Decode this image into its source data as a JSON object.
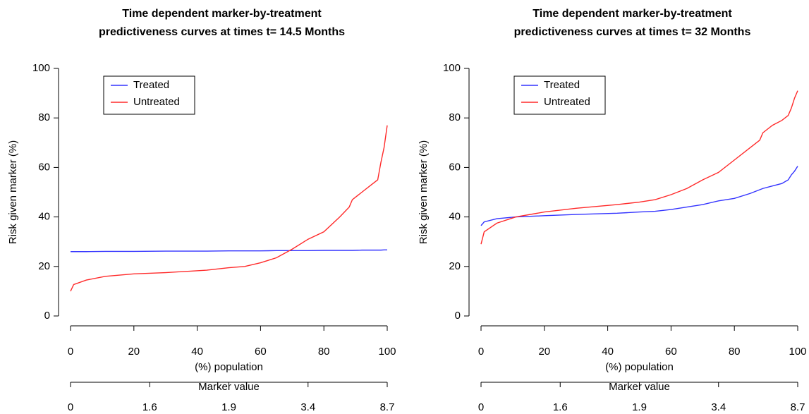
{
  "chart_data": [
    {
      "type": "line",
      "title": [
        "Time dependent marker-by-treatment",
        "predictiveness curves at times t= 14.5 Months"
      ],
      "xlabel": "(%) population",
      "ylabel": "Risk given marker (%)",
      "x": [
        0,
        1,
        5,
        11,
        20,
        30,
        43,
        50,
        55,
        60,
        65,
        70,
        75,
        80,
        85,
        88,
        89,
        92,
        95,
        97,
        98,
        99,
        100
      ],
      "series": [
        {
          "name": "Treated",
          "color": "#3333ff",
          "values": [
            26,
            26,
            26,
            26.1,
            26.1,
            26.2,
            26.2,
            26.3,
            26.3,
            26.3,
            26.4,
            26.4,
            26.4,
            26.5,
            26.5,
            26.5,
            26.5,
            26.6,
            26.6,
            26.6,
            26.6,
            26.7,
            26.7
          ]
        },
        {
          "name": "Untreated",
          "color": "#ff2a2a",
          "values": [
            10,
            12.7,
            14.5,
            16,
            17,
            17.5,
            18.5,
            19.5,
            20,
            21.5,
            23.5,
            27,
            31,
            34,
            40,
            44,
            47,
            50,
            53,
            55,
            62,
            68,
            77
          ]
        }
      ],
      "xlim": [
        0,
        100
      ],
      "xticks": [
        0,
        20,
        40,
        60,
        80,
        100
      ],
      "ylim": [
        0,
        100
      ],
      "yticks": [
        0,
        20,
        40,
        60,
        80,
        100
      ],
      "x2label": "Marker value",
      "x2categories": [
        0,
        1.6,
        1.9,
        3.4,
        8.7
      ],
      "legend": "top-left"
    },
    {
      "type": "line",
      "title": [
        "Time dependent marker-by-treatment",
        "predictiveness curves at times t= 32 Months"
      ],
      "xlabel": "(%) population",
      "ylabel": "Risk given marker (%)",
      "x": [
        0,
        1,
        5,
        11,
        20,
        30,
        43,
        50,
        55,
        60,
        65,
        70,
        75,
        80,
        85,
        88,
        89,
        92,
        95,
        97,
        98,
        99,
        100
      ],
      "series": [
        {
          "name": "Treated",
          "color": "#3333ff",
          "values": [
            36.5,
            38,
            39.3,
            40,
            40.5,
            41,
            41.5,
            42,
            42.3,
            43,
            44,
            45,
            46.5,
            47.5,
            49.5,
            51,
            51.5,
            52.5,
            53.5,
            55,
            57,
            58.5,
            60.5
          ]
        },
        {
          "name": "Untreated",
          "color": "#ff2a2a",
          "values": [
            29,
            34,
            37.5,
            40,
            42,
            43.5,
            45,
            46,
            47,
            49,
            51.5,
            55,
            58,
            63,
            68,
            71,
            74,
            77,
            79,
            81,
            84,
            88,
            91
          ]
        }
      ],
      "xlim": [
        0,
        100
      ],
      "xticks": [
        0,
        20,
        40,
        60,
        80,
        100
      ],
      "ylim": [
        0,
        100
      ],
      "yticks": [
        0,
        20,
        40,
        60,
        80,
        100
      ],
      "x2label": "Marker value",
      "x2categories": [
        0,
        1.6,
        1.9,
        3.4,
        8.7
      ],
      "legend": "top-left"
    }
  ]
}
